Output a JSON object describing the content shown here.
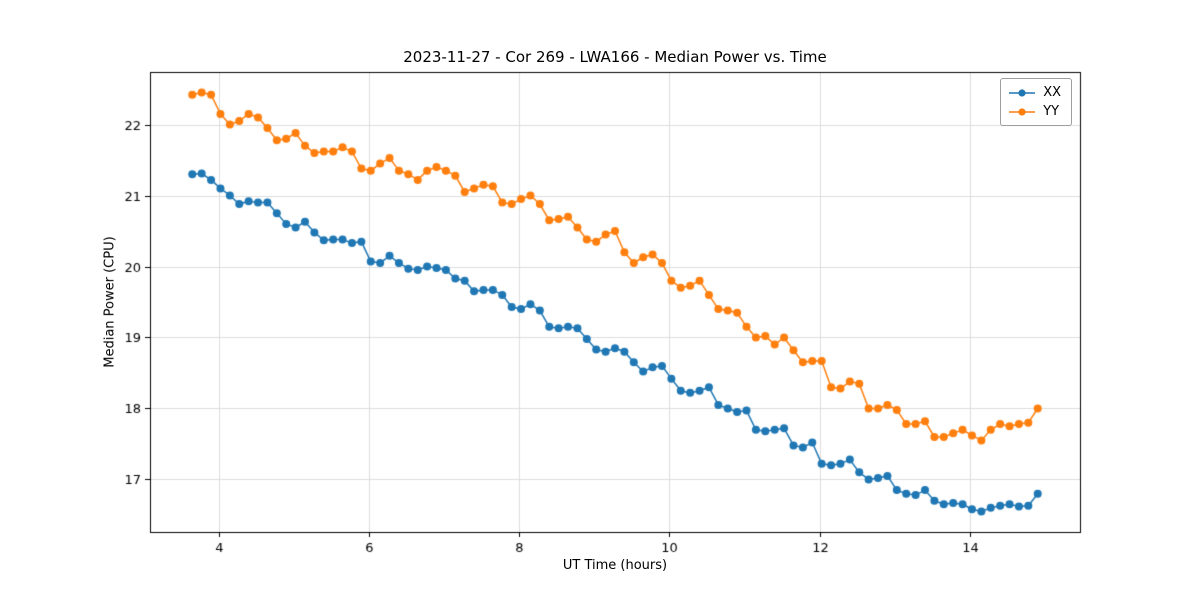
{
  "chart_data": {
    "type": "line",
    "title": "2023-11-27 - Cor 269 - LWA166 - Median Power vs. Time",
    "xlabel": "UT Time (hours)",
    "ylabel": "Median Power (CPU)",
    "xlim": [
      3.0875,
      15.4625
    ],
    "ylim": [
      16.26,
      22.74
    ],
    "xticks": [
      4,
      6,
      8,
      10,
      12,
      14
    ],
    "yticks": [
      17,
      18,
      19,
      20,
      21,
      22
    ],
    "grid": true,
    "legend_position": "upper right",
    "x_start": 3.65,
    "x_step": 0.125,
    "series": [
      {
        "name": "XX",
        "color": "#1f77b4",
        "values": [
          21.3,
          21.31,
          21.22,
          21.1,
          21.0,
          20.88,
          20.92,
          20.9,
          20.9,
          20.75,
          20.6,
          20.55,
          20.63,
          20.48,
          20.37,
          20.38,
          20.38,
          20.33,
          20.35,
          20.07,
          20.05,
          20.15,
          20.05,
          19.97,
          19.95,
          20.0,
          19.98,
          19.95,
          19.83,
          19.8,
          19.65,
          19.67,
          19.67,
          19.6,
          19.43,
          19.4,
          19.47,
          19.38,
          19.15,
          19.13,
          19.15,
          19.13,
          18.98,
          18.83,
          18.8,
          18.85,
          18.8,
          18.65,
          18.52,
          18.58,
          18.6,
          18.42,
          18.25,
          18.22,
          18.25,
          18.3,
          18.05,
          18.0,
          17.95,
          17.97,
          17.7,
          17.68,
          17.7,
          17.72,
          17.48,
          17.45,
          17.52,
          17.22,
          17.2,
          17.22,
          17.28,
          17.1,
          17.0,
          17.02,
          17.05,
          16.85,
          16.8,
          16.78,
          16.85,
          16.7,
          16.65,
          16.67,
          16.65,
          16.58,
          16.55,
          16.6,
          16.63,
          16.65,
          16.62,
          16.63,
          16.8
        ]
      },
      {
        "name": "YY",
        "color": "#ff7f0e",
        "values": [
          22.42,
          22.45,
          22.42,
          22.15,
          22.0,
          22.05,
          22.15,
          22.1,
          21.95,
          21.78,
          21.8,
          21.88,
          21.7,
          21.6,
          21.62,
          21.62,
          21.68,
          21.62,
          21.38,
          21.35,
          21.45,
          21.53,
          21.35,
          21.3,
          21.22,
          21.35,
          21.4,
          21.35,
          21.28,
          21.05,
          21.1,
          21.15,
          21.13,
          20.9,
          20.88,
          20.95,
          21.0,
          20.88,
          20.65,
          20.67,
          20.7,
          20.55,
          20.38,
          20.35,
          20.45,
          20.5,
          20.2,
          20.05,
          20.13,
          20.17,
          20.05,
          19.8,
          19.7,
          19.73,
          19.8,
          19.6,
          19.4,
          19.38,
          19.35,
          19.15,
          19.0,
          19.02,
          18.9,
          19.0,
          18.82,
          18.65,
          18.67,
          18.67,
          18.3,
          18.28,
          18.38,
          18.35,
          18.0,
          18.0,
          18.05,
          17.98,
          17.78,
          17.78,
          17.82,
          17.6,
          17.6,
          17.65,
          17.7,
          17.62,
          17.55,
          17.7,
          17.78,
          17.75,
          17.78,
          17.8,
          18.0
        ]
      }
    ]
  }
}
